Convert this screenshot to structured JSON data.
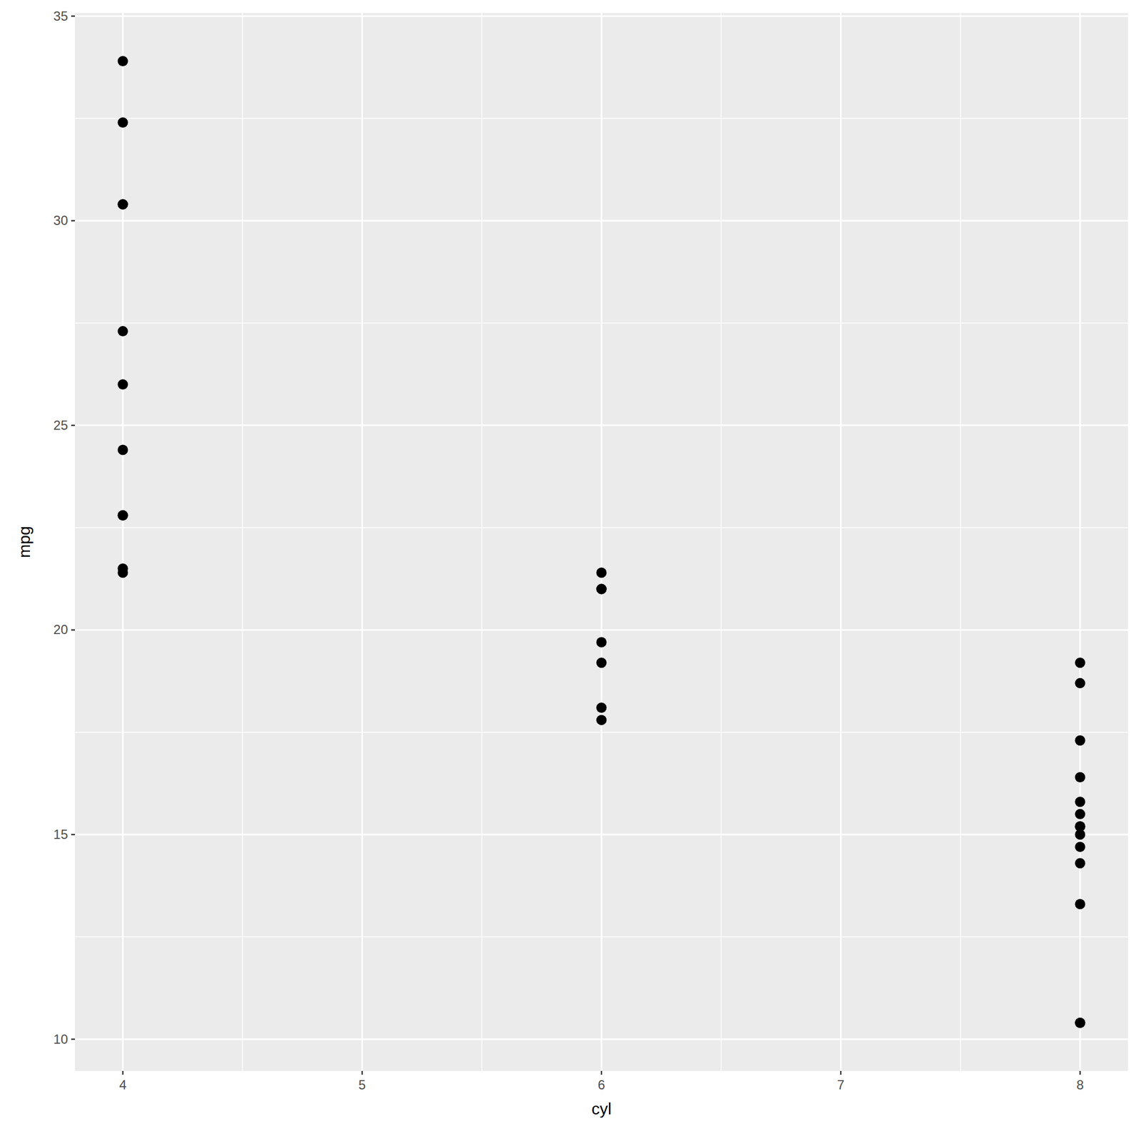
{
  "chart_data": {
    "type": "scatter",
    "x_label": "cyl",
    "y_label": "mpg",
    "x": [
      6,
      6,
      4,
      6,
      8,
      6,
      8,
      4,
      4,
      6,
      6,
      8,
      8,
      8,
      8,
      8,
      8,
      4,
      4,
      4,
      4,
      8,
      8,
      8,
      8,
      4,
      4,
      4,
      8,
      6,
      8,
      4
    ],
    "values": [
      21.0,
      21.0,
      22.8,
      21.4,
      18.7,
      18.1,
      14.3,
      24.4,
      22.8,
      19.2,
      17.8,
      16.4,
      17.3,
      15.2,
      10.4,
      10.4,
      14.7,
      32.4,
      30.4,
      33.9,
      21.5,
      15.5,
      15.2,
      13.3,
      19.2,
      27.3,
      26.0,
      30.4,
      15.8,
      19.7,
      15.0,
      21.4
    ],
    "xlim": [
      3.8,
      8.2
    ],
    "ylim": [
      9.225,
      35.075
    ],
    "xticks": [
      4,
      5,
      6,
      7,
      8
    ],
    "yticks": [
      10,
      15,
      20,
      25,
      30,
      35
    ],
    "grid": true,
    "color": "#000000",
    "marker": "circle"
  }
}
